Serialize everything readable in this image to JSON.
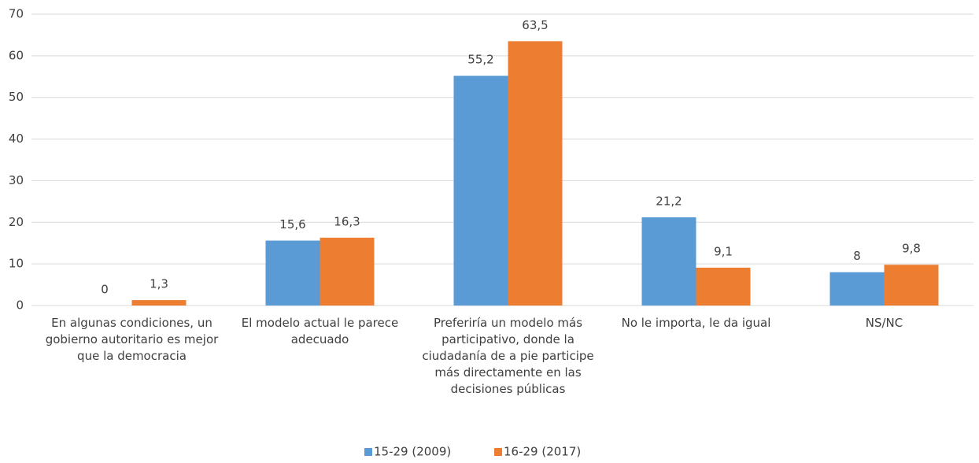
{
  "chart_data": {
    "type": "bar",
    "categories": [
      "En algunas condiciones, un gobierno autoritario es mejor que la democracia",
      "El modelo actual le parece adecuado",
      "Preferiría un modelo más participativo, donde la ciudadanía de a pie participe más directamente en las decisiones públicas",
      "No le importa, le da igual",
      "NS/NC"
    ],
    "series": [
      {
        "name": "15-29 (2009)",
        "color": "#5b9bd5",
        "values": [
          0,
          15.6,
          55.2,
          21.2,
          8
        ],
        "value_labels": [
          "0",
          "15,6",
          "55,2",
          "21,2",
          "8"
        ]
      },
      {
        "name": "16-29 (2017)",
        "color": "#ed7d31",
        "values": [
          1.3,
          16.3,
          63.5,
          9.1,
          9.8
        ],
        "value_labels": [
          "1,3",
          "16,3",
          "63,5",
          "9,1",
          "9,8"
        ]
      }
    ],
    "ylim": [
      0,
      70
    ],
    "yticks": [
      0,
      10,
      20,
      30,
      40,
      50,
      60,
      70
    ],
    "grid": true,
    "legend": "bottom"
  }
}
